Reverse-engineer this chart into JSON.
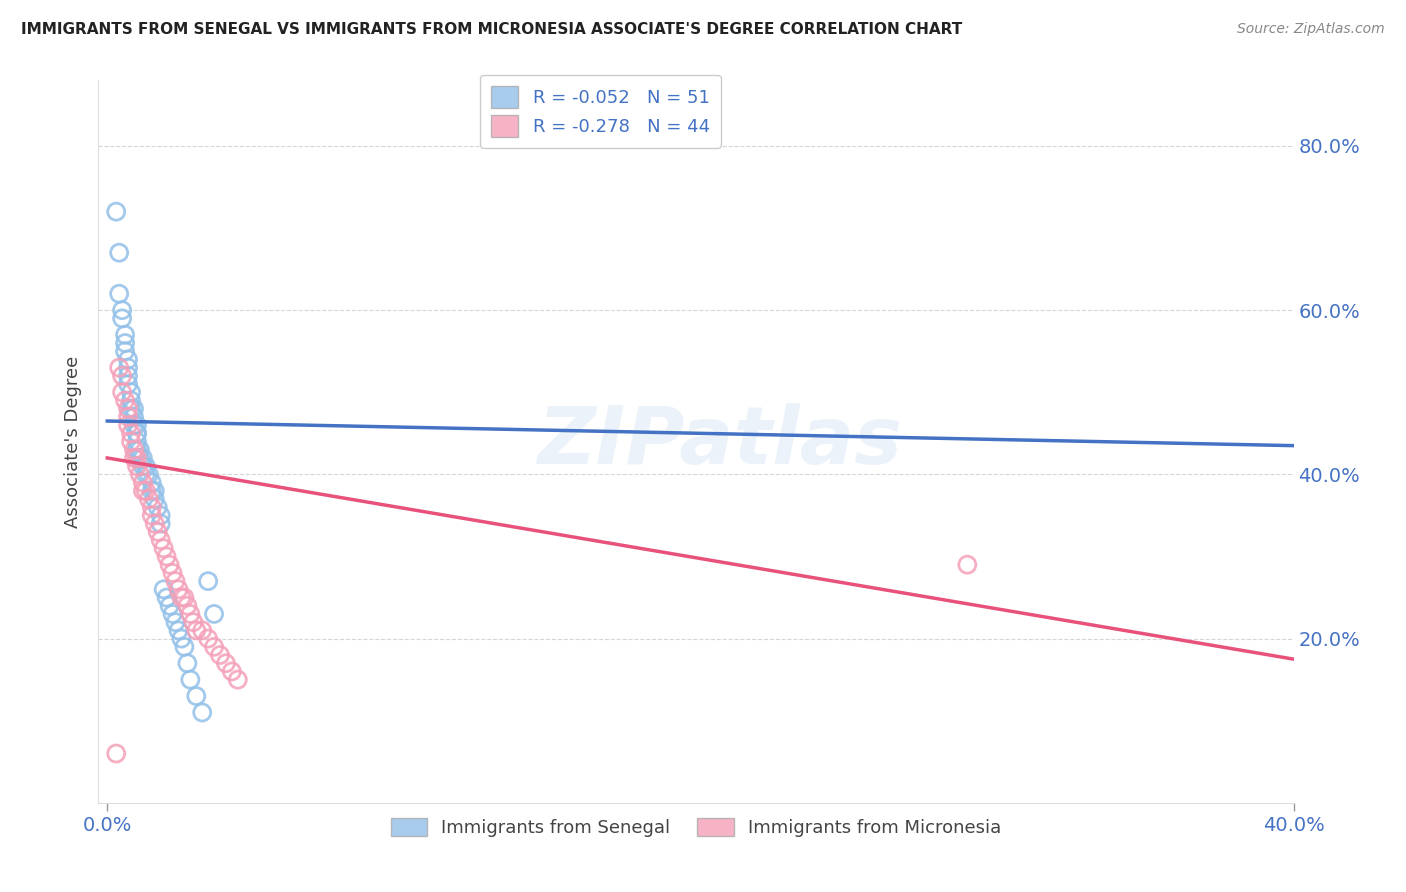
{
  "title": "IMMIGRANTS FROM SENEGAL VS IMMIGRANTS FROM MICRONESIA ASSOCIATE'S DEGREE CORRELATION CHART",
  "source": "Source: ZipAtlas.com",
  "ylabel": "Associate's Degree",
  "watermark": "ZIPatlas",
  "senegal_color": "#92C0E8",
  "micronesia_color": "#F4A0B8",
  "trendline_senegal_color": "#4472C4",
  "trendline_micronesia_color": "#E8527A",
  "trendline_senegal_dash_color": "#A8C8F0",
  "background_color": "#FFFFFF",
  "grid_color": "#CCCCCC",
  "senegal_R": -0.052,
  "senegal_N": 51,
  "micronesia_R": -0.278,
  "micronesia_N": 44,
  "xlim": [
    0.0,
    0.4
  ],
  "ylim": [
    0.0,
    0.88
  ],
  "ytick_values": [
    0.2,
    0.4,
    0.6,
    0.8
  ],
  "ytick_labels": [
    "20.0%",
    "40.0%",
    "60.0%",
    "80.0%"
  ],
  "xtick_values": [
    0.0,
    0.4
  ],
  "xtick_labels": [
    "0.0%",
    "40.0%"
  ],
  "senegal_points_x": [
    0.003,
    0.004,
    0.005,
    0.005,
    0.006,
    0.006,
    0.006,
    0.007,
    0.007,
    0.007,
    0.007,
    0.008,
    0.008,
    0.008,
    0.009,
    0.009,
    0.009,
    0.01,
    0.01,
    0.01,
    0.01,
    0.01,
    0.011,
    0.011,
    0.012,
    0.012,
    0.013,
    0.013,
    0.014,
    0.015,
    0.015,
    0.016,
    0.016,
    0.017,
    0.018,
    0.018,
    0.019,
    0.02,
    0.021,
    0.022,
    0.023,
    0.024,
    0.025,
    0.026,
    0.027,
    0.028,
    0.03,
    0.032,
    0.034,
    0.036,
    0.004
  ],
  "senegal_points_y": [
    0.72,
    0.62,
    0.6,
    0.59,
    0.57,
    0.56,
    0.55,
    0.54,
    0.53,
    0.52,
    0.51,
    0.5,
    0.49,
    0.48,
    0.48,
    0.47,
    0.46,
    0.46,
    0.45,
    0.45,
    0.44,
    0.43,
    0.43,
    0.42,
    0.42,
    0.41,
    0.41,
    0.4,
    0.4,
    0.39,
    0.38,
    0.38,
    0.37,
    0.36,
    0.35,
    0.34,
    0.26,
    0.25,
    0.24,
    0.23,
    0.22,
    0.21,
    0.2,
    0.19,
    0.17,
    0.15,
    0.13,
    0.11,
    0.27,
    0.23,
    0.67
  ],
  "micronesia_points_x": [
    0.004,
    0.005,
    0.005,
    0.006,
    0.007,
    0.007,
    0.007,
    0.008,
    0.008,
    0.009,
    0.009,
    0.01,
    0.01,
    0.011,
    0.012,
    0.012,
    0.013,
    0.014,
    0.015,
    0.015,
    0.016,
    0.017,
    0.018,
    0.019,
    0.02,
    0.021,
    0.022,
    0.023,
    0.024,
    0.025,
    0.026,
    0.027,
    0.028,
    0.029,
    0.03,
    0.032,
    0.034,
    0.036,
    0.038,
    0.04,
    0.042,
    0.044,
    0.29,
    0.003
  ],
  "micronesia_points_y": [
    0.53,
    0.52,
    0.5,
    0.49,
    0.48,
    0.47,
    0.46,
    0.45,
    0.44,
    0.43,
    0.42,
    0.42,
    0.41,
    0.4,
    0.39,
    0.38,
    0.38,
    0.37,
    0.36,
    0.35,
    0.34,
    0.33,
    0.32,
    0.31,
    0.3,
    0.29,
    0.28,
    0.27,
    0.26,
    0.25,
    0.25,
    0.24,
    0.23,
    0.22,
    0.21,
    0.21,
    0.2,
    0.19,
    0.18,
    0.17,
    0.16,
    0.15,
    0.29,
    0.06
  ],
  "trendline_senegal_x0": 0.0,
  "trendline_senegal_x1": 0.4,
  "trendline_senegal_y0": 0.465,
  "trendline_senegal_y1": 0.435,
  "trendline_micronesia_x0": 0.0,
  "trendline_micronesia_x1": 0.4,
  "trendline_micronesia_y0": 0.42,
  "trendline_micronesia_y1": 0.175
}
